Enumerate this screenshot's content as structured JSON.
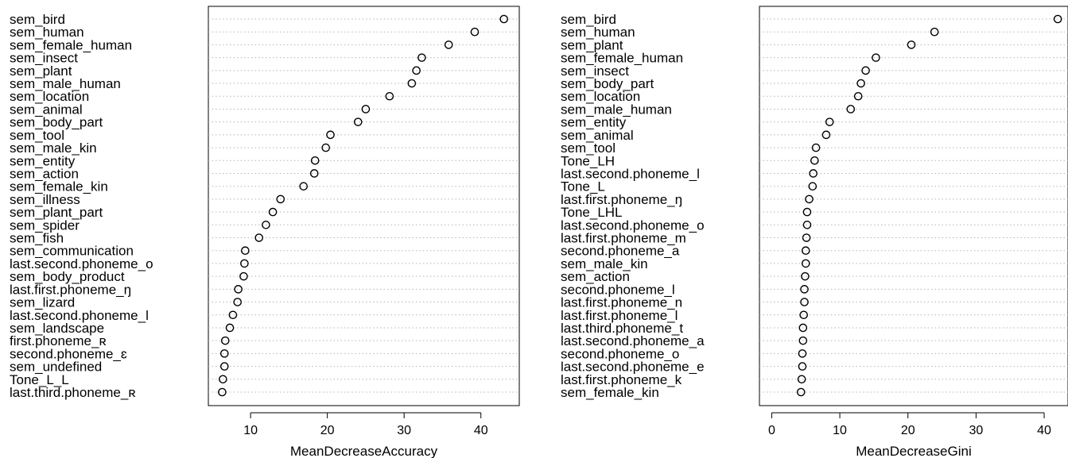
{
  "chart_data": [
    {
      "type": "scatter",
      "xlabel": "MeanDecreaseAccuracy",
      "xticks": [
        10,
        20,
        30,
        40
      ],
      "xlim": [
        4.5,
        45
      ],
      "grid": "horizontal dotted",
      "labels": [
        "sem_bird",
        "sem_human",
        "sem_female_human",
        "sem_insect",
        "sem_plant",
        "sem_male_human",
        "sem_location",
        "sem_animal",
        "sem_body_part",
        "sem_tool",
        "sem_male_kin",
        "sem_entity",
        "sem_action",
        "sem_female_kin",
        "sem_illness",
        "sem_plant_part",
        "sem_spider",
        "sem_fish",
        "sem_communication",
        "last.second.phoneme_o",
        "sem_body_product",
        "last.first.phoneme_ŋ",
        "sem_lizard",
        "last.second.phoneme_l",
        "sem_landscape",
        "first.phoneme_ʀ",
        "second.phoneme_ɛ",
        "sem_undefined",
        "Tone_L_L",
        "last.third.phoneme_ʀ"
      ],
      "values": [
        43.0,
        39.2,
        35.8,
        32.3,
        31.6,
        31.0,
        28.1,
        25.0,
        24.0,
        20.4,
        19.8,
        18.4,
        18.3,
        16.9,
        13.9,
        12.9,
        12.0,
        11.1,
        9.3,
        9.2,
        9.1,
        8.4,
        8.3,
        7.7,
        7.3,
        6.7,
        6.6,
        6.6,
        6.4,
        6.3
      ]
    },
    {
      "type": "scatter",
      "xlabel": "MeanDecreaseGini",
      "xticks": [
        0,
        10,
        20,
        30,
        40
      ],
      "xlim": [
        -1.8,
        43.5
      ],
      "grid": "horizontal dotted",
      "labels": [
        "sem_bird",
        "sem_human",
        "sem_plant",
        "sem_female_human",
        "sem_insect",
        "sem_body_part",
        "sem_location",
        "sem_male_human",
        "sem_entity",
        "sem_animal",
        "sem_tool",
        "Tone_LH",
        "last.second.phoneme_l",
        "Tone_L",
        "last.first.phoneme_ŋ",
        "Tone_LHL",
        "last.second.phoneme_o",
        "last.first.phoneme_m",
        "second.phoneme_a",
        "sem_male_kin",
        "sem_action",
        "second.phoneme_l",
        "last.first.phoneme_n",
        "last.first.phoneme_l",
        "last.third.phoneme_t",
        "last.second.phoneme_a",
        "second.phoneme_o",
        "last.second.phoneme_e",
        "last.first.phoneme_k",
        "sem_female_kin"
      ],
      "values": [
        42.0,
        23.9,
        20.5,
        15.3,
        13.8,
        13.1,
        12.7,
        11.6,
        8.5,
        8.0,
        6.5,
        6.3,
        6.1,
        6.0,
        5.5,
        5.2,
        5.2,
        5.1,
        5.0,
        5.0,
        4.9,
        4.8,
        4.8,
        4.7,
        4.6,
        4.6,
        4.5,
        4.5,
        4.4,
        4.3
      ]
    }
  ]
}
